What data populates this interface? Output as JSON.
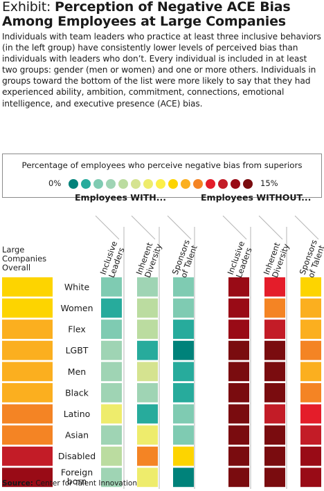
{
  "title": {
    "lead": "Exhibit:",
    "main": "Perception of Negative ACE Bias Among Employees at Large Companies"
  },
  "description": "Individuals with team leaders who practice at least three inclusive behaviors (in the left group) have consistently lower levels of perceived bias than individuals with leaders who don’t. Every individual is included in at least two groups: gender (men or women) and one or more others. Individuals in groups toward the bottom of the list were more likely to say that they had experienced ability, ambition, commitment, connections, emotional intelligence, and executive presence (ACE) bias.",
  "legend": {
    "title": "Percentage of employees who perceive negative bias from superiors",
    "min_label": "0%",
    "max_label": "15%",
    "colors": [
      "#00827a",
      "#27ab9c",
      "#7fcbb2",
      "#9fd4b4",
      "#bbdca0",
      "#d5e390",
      "#eeec6c",
      "#fcef4a",
      "#fdd400",
      "#fbaf1f",
      "#f48424",
      "#e41d2a",
      "#c31c27",
      "#990b16",
      "#7a0c0f"
    ]
  },
  "groups": {
    "with_label": "Employees WITH...",
    "without_label": "Employees WITHOUT..."
  },
  "overall_label": [
    "Large",
    "Companies",
    "Overall"
  ],
  "source": {
    "label": "Source:",
    "text": "Center for Talent Innovation"
  },
  "chart_data": {
    "type": "heatmap",
    "color_scale": "Percentage of employees who perceive negative bias from superiors",
    "scale_range": [
      "0%",
      "15%"
    ],
    "row_categories": [
      "White",
      "Women",
      "Flex",
      "LGBT",
      "Men",
      "Black",
      "Latino",
      "Asian",
      "Disabled",
      [
        "Foreign",
        "born"
      ]
    ],
    "column_groups": [
      {
        "name": "Employees WITH...",
        "columns": [
          [
            "Inclusive",
            "Leaders"
          ],
          [
            "Inherent",
            "Diversity"
          ],
          [
            "Sponsors",
            "of Talent"
          ]
        ]
      },
      {
        "name": "Employees WITHOUT...",
        "columns": [
          [
            "Inclusive",
            "Leaders"
          ],
          [
            "Inherent",
            "Diversity"
          ],
          [
            "Sponsors",
            "of Talent"
          ]
        ]
      }
    ],
    "overall_column": [
      "Large",
      "Companies",
      "Overall"
    ],
    "overall_levels": [
      8,
      8,
      9,
      9,
      9,
      9,
      10,
      10,
      12,
      13
    ],
    "with_levels": [
      [
        2,
        3,
        2
      ],
      [
        1,
        4,
        2
      ],
      [
        2,
        4,
        1
      ],
      [
        3,
        1,
        0
      ],
      [
        3,
        5,
        1
      ],
      [
        3,
        3,
        1
      ],
      [
        6,
        1,
        2
      ],
      [
        3,
        6,
        2
      ],
      [
        4,
        10,
        8
      ],
      [
        3,
        6,
        0
      ]
    ],
    "without_levels": [
      [
        13,
        11,
        8
      ],
      [
        13,
        10,
        9
      ],
      [
        13,
        12,
        9
      ],
      [
        14,
        14,
        10
      ],
      [
        14,
        14,
        9
      ],
      [
        14,
        14,
        10
      ],
      [
        14,
        12,
        11
      ],
      [
        14,
        14,
        12
      ],
      [
        14,
        14,
        13
      ],
      [
        14,
        14,
        13
      ]
    ]
  }
}
